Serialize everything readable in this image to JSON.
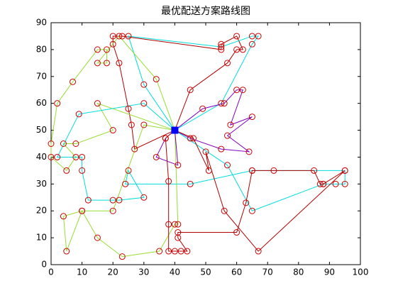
{
  "chart_data": {
    "type": "line",
    "title": "最优配送方案路线图",
    "xlim": [
      0,
      100
    ],
    "ylim": [
      0,
      90
    ],
    "xticks": [
      0,
      10,
      20,
      30,
      40,
      50,
      60,
      70,
      80,
      90,
      100
    ],
    "yticks": [
      0,
      10,
      20,
      30,
      40,
      50,
      60,
      70,
      80,
      90
    ],
    "grid": false,
    "marker_color": "#cc0000",
    "depot": {
      "x": 40,
      "y": 50,
      "color": "#0000ff"
    },
    "series": [
      {
        "color": "#b00000",
        "x": [
          40,
          45,
          57,
          60,
          62,
          60,
          55,
          55,
          23,
          20,
          20,
          22,
          25,
          26,
          27,
          40
        ],
        "values": [
          50,
          65,
          75,
          80,
          80,
          85,
          82,
          80,
          85,
          85,
          82,
          75,
          58,
          52,
          43,
          50
        ]
      },
      {
        "color": "#00dddd",
        "x": [
          40,
          30,
          25,
          55,
          65,
          67,
          65,
          55,
          40
        ],
        "values": [
          50,
          67,
          85,
          81,
          85,
          85,
          82,
          60,
          50
        ]
      },
      {
        "color": "#99dd33",
        "x": [
          40,
          34,
          22,
          15,
          18,
          18,
          15,
          7,
          2,
          0,
          0,
          5,
          8,
          4,
          8,
          20,
          15,
          40
        ],
        "values": [
          50,
          69,
          85,
          75,
          75,
          80,
          80,
          68,
          60,
          45,
          40,
          35,
          40,
          45,
          45,
          50,
          60,
          50
        ]
      },
      {
        "color": "#00dddd",
        "x": [
          40,
          30,
          9,
          2,
          10,
          10,
          12,
          20,
          22,
          30,
          25,
          24,
          45,
          65,
          95,
          95,
          92,
          88,
          65,
          57,
          40
        ],
        "values": [
          50,
          60,
          56,
          40,
          40,
          35,
          24,
          24,
          24,
          25,
          35,
          30,
          30,
          35,
          35,
          30,
          30,
          30,
          20,
          37,
          50
        ]
      },
      {
        "color": "#99dd33",
        "x": [
          40,
          41,
          40,
          35,
          23,
          15,
          10,
          5,
          4,
          10,
          20,
          30,
          40
        ],
        "values": [
          50,
          15,
          15,
          5,
          3,
          10,
          20,
          5,
          18,
          20,
          20,
          52,
          50
        ]
      },
      {
        "color": "#8000c0",
        "x": [
          40,
          49,
          56,
          60,
          62,
          58,
          65,
          57,
          64,
          55,
          45,
          40
        ],
        "values": [
          50,
          58,
          60,
          65,
          65,
          52,
          55,
          48,
          42,
          43,
          47,
          50
        ]
      },
      {
        "color": "#8000c0",
        "x": [
          40,
          41,
          34,
          37,
          40
        ],
        "values": [
          50,
          37,
          40,
          47,
          50
        ]
      },
      {
        "color": "#b00000",
        "x": [
          40,
          37,
          38,
          38,
          38,
          40,
          42,
          44,
          41,
          41,
          60,
          63,
          65,
          72,
          85,
          87,
          88,
          95,
          67,
          56,
          50,
          51,
          46,
          40
        ],
        "values": [
          50,
          47,
          31,
          15,
          5,
          5,
          5,
          5,
          10,
          12,
          12,
          23,
          35,
          35,
          35,
          30,
          30,
          35,
          5,
          20,
          42,
          35,
          47,
          50
        ]
      }
    ]
  }
}
